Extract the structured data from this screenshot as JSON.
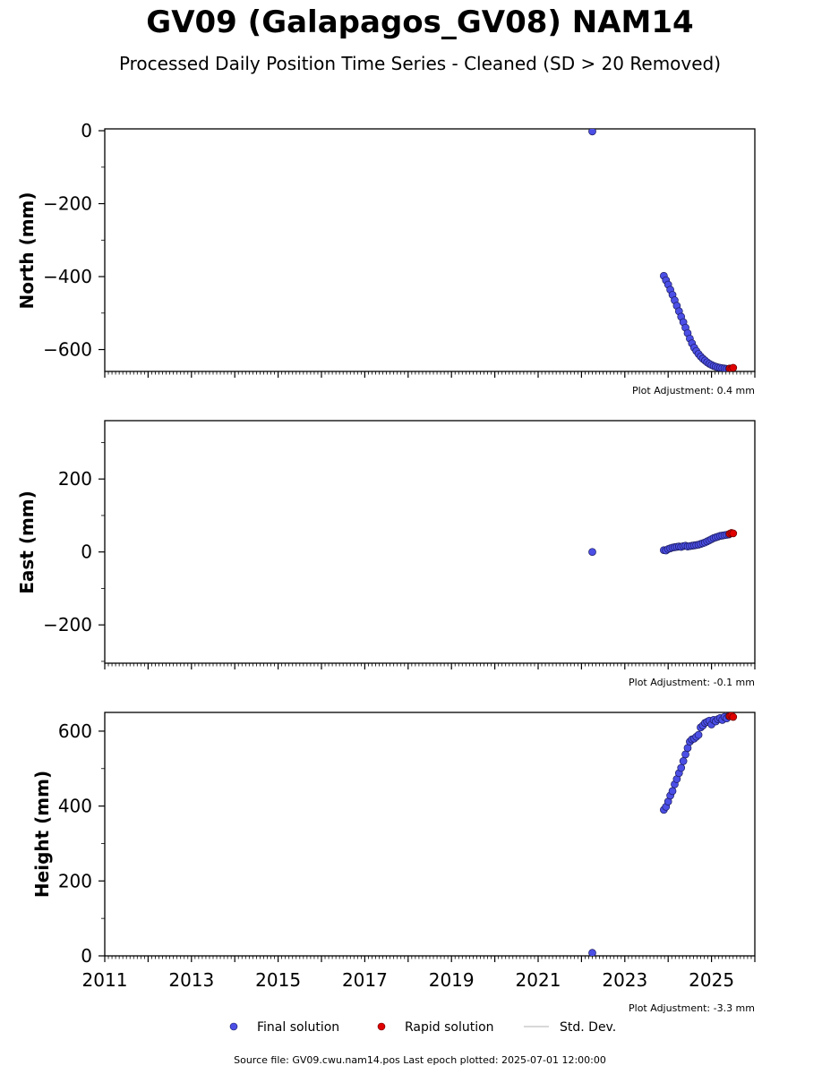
{
  "figure": {
    "title": "GV09 (Galapagos_GV08) NAM14",
    "subtitle": "Processed Daily Position Time Series - Cleaned (SD > 20 Removed)",
    "source_note": "Source file: GV09.cwu.nam14.pos  Last epoch plotted: 2025-07-01 12:00:00"
  },
  "colors": {
    "final": "#4b4fe6",
    "final_edge": "#1a1a5e",
    "rapid": "#e00000",
    "rapid_edge": "#600000",
    "stddev": "#cccccc"
  },
  "legend": {
    "final": "Final solution",
    "rapid": "Rapid solution",
    "stddev": "Std. Dev."
  },
  "chart_data": [
    {
      "type": "scatter",
      "ylabel": "North (mm)",
      "adjustment": "Plot Adjustment: 0.4 mm",
      "xlim": [
        2011.0,
        2026.0
      ],
      "ylim": [
        -660,
        5
      ],
      "yticks": [
        0,
        -200,
        -400,
        -600
      ],
      "ytick_labels": [
        "0",
        "−200",
        "−400",
        "−600"
      ],
      "show_xtick_labels": false,
      "series": [
        {
          "name": "Final solution",
          "x": [
            2022.25,
            2023.9,
            2023.95,
            2024.0,
            2024.05,
            2024.1,
            2024.15,
            2024.2,
            2024.25,
            2024.3,
            2024.35,
            2024.4,
            2024.45,
            2024.5,
            2024.55,
            2024.6,
            2024.65,
            2024.7,
            2024.75,
            2024.8,
            2024.85,
            2024.9,
            2024.95,
            2025.0,
            2025.05,
            2025.1,
            2025.15,
            2025.2,
            2025.25,
            2025.3,
            2025.35,
            2025.4
          ],
          "y": [
            -2,
            -398,
            -410,
            -422,
            -436,
            -450,
            -465,
            -480,
            -495,
            -510,
            -525,
            -540,
            -555,
            -570,
            -583,
            -595,
            -604,
            -612,
            -619,
            -625,
            -630,
            -635,
            -639,
            -642,
            -645,
            -647,
            -649,
            -650,
            -651,
            -652,
            -653,
            -653
          ]
        },
        {
          "name": "Rapid solution",
          "x": [
            2025.42,
            2025.46,
            2025.5
          ],
          "y": [
            -652,
            -653,
            -650
          ]
        }
      ]
    },
    {
      "type": "scatter",
      "ylabel": "East (mm)",
      "adjustment": "Plot Adjustment: -0.1 mm",
      "xlim": [
        2011.0,
        2026.0
      ],
      "ylim": [
        -305,
        360
      ],
      "yticks": [
        200,
        0,
        -200
      ],
      "ytick_labels": [
        "200",
        "0",
        "−200"
      ],
      "show_xtick_labels": false,
      "series": [
        {
          "name": "Final solution",
          "x": [
            2022.25,
            2023.9,
            2023.95,
            2024.0,
            2024.05,
            2024.1,
            2024.15,
            2024.2,
            2024.25,
            2024.3,
            2024.35,
            2024.4,
            2024.45,
            2024.5,
            2024.55,
            2024.6,
            2024.65,
            2024.7,
            2024.75,
            2024.8,
            2024.85,
            2024.9,
            2024.95,
            2025.0,
            2025.05,
            2025.1,
            2025.15,
            2025.2,
            2025.25,
            2025.3,
            2025.35,
            2025.4
          ],
          "y": [
            0,
            5,
            4,
            8,
            10,
            12,
            13,
            14,
            15,
            14,
            16,
            17,
            15,
            16,
            17,
            18,
            19,
            20,
            22,
            24,
            26,
            29,
            32,
            35,
            38,
            40,
            42,
            44,
            45,
            46,
            47,
            48
          ]
        },
        {
          "name": "Rapid solution",
          "x": [
            2025.42,
            2025.46,
            2025.5
          ],
          "y": [
            50,
            52,
            51
          ]
        }
      ]
    },
    {
      "type": "scatter",
      "ylabel": "Height (mm)",
      "adjustment": "Plot Adjustment: -3.3 mm",
      "xlim": [
        2011.0,
        2026.0
      ],
      "ylim": [
        0,
        650
      ],
      "yticks": [
        0,
        200,
        400,
        600
      ],
      "ytick_labels": [
        "0",
        "200",
        "400",
        "600"
      ],
      "xticks": [
        2011,
        2013,
        2015,
        2017,
        2019,
        2021,
        2023,
        2025
      ],
      "xtick_labels": [
        "2011",
        "2013",
        "2015",
        "2017",
        "2019",
        "2021",
        "2023",
        "2025"
      ],
      "show_xtick_labels": true,
      "series": [
        {
          "name": "Final solution",
          "x": [
            2022.25,
            2023.9,
            2023.95,
            2024.0,
            2024.05,
            2024.1,
            2024.15,
            2024.2,
            2024.25,
            2024.3,
            2024.35,
            2024.4,
            2024.45,
            2024.5,
            2024.55,
            2024.6,
            2024.65,
            2024.7,
            2024.75,
            2024.8,
            2024.85,
            2024.9,
            2024.95,
            2025.0,
            2025.05,
            2025.1,
            2025.15,
            2025.2,
            2025.25,
            2025.3,
            2025.35,
            2025.4
          ],
          "y": [
            8,
            390,
            398,
            412,
            428,
            440,
            458,
            472,
            488,
            502,
            520,
            538,
            555,
            572,
            578,
            580,
            585,
            590,
            610,
            615,
            622,
            625,
            628,
            618,
            630,
            626,
            632,
            635,
            630,
            638,
            634,
            640
          ]
        },
        {
          "name": "Rapid solution",
          "x": [
            2025.42,
            2025.46,
            2025.5
          ],
          "y": [
            640,
            642,
            638
          ]
        }
      ]
    }
  ]
}
